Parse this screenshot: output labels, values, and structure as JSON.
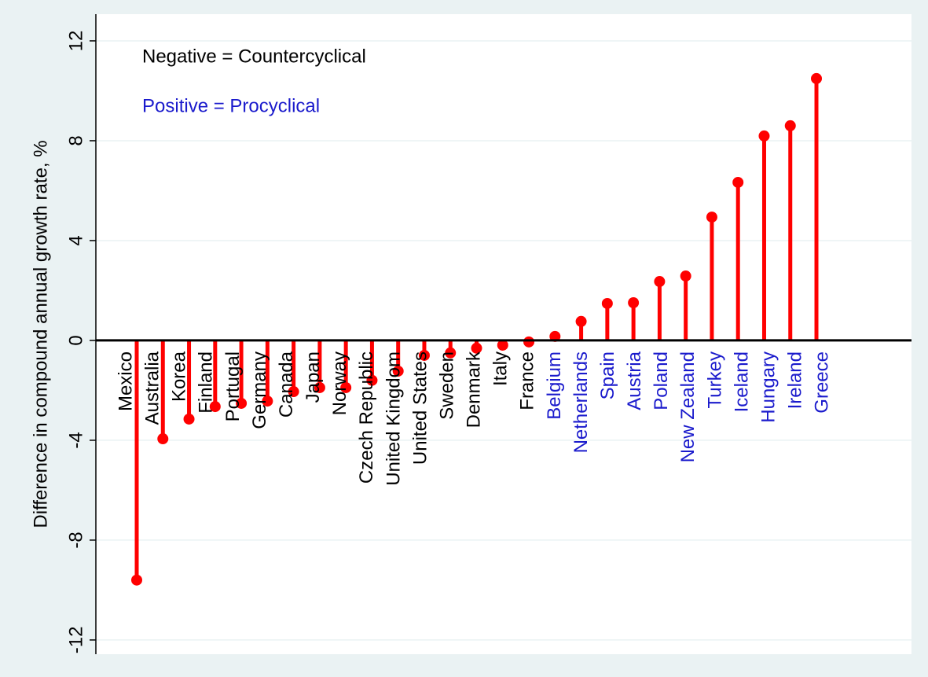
{
  "chart_data": {
    "type": "lollipop",
    "ylabel": "Difference in compound annual growth rate, %",
    "annotations": [
      {
        "text": "Negative = Countercyclical",
        "color": "#000000"
      },
      {
        "text": "Positive = Procyclical",
        "color": "#1a1acc"
      }
    ],
    "categories": [
      "Mexico",
      "Australia",
      "Korea",
      "Finland",
      "Portugal",
      "Germany",
      "Canada",
      "Japan",
      "Norway",
      "Czech Republic",
      "United Kingdom",
      "United States",
      "Sweden",
      "Denmark",
      "Italy",
      "France",
      "Belgium",
      "Netherlands",
      "Spain",
      "Austria",
      "Poland",
      "New Zealand",
      "Turkey",
      "Iceland",
      "Hungary",
      "Ireland",
      "Greece"
    ],
    "category_colors": [
      "#000000",
      "#000000",
      "#000000",
      "#000000",
      "#000000",
      "#000000",
      "#000000",
      "#000000",
      "#000000",
      "#000000",
      "#000000",
      "#000000",
      "#000000",
      "#000000",
      "#000000",
      "#000000",
      "#1a1acc",
      "#1a1acc",
      "#1a1acc",
      "#1a1acc",
      "#1a1acc",
      "#1a1acc",
      "#1a1acc",
      "#1a1acc",
      "#1a1acc",
      "#1a1acc",
      "#1a1acc"
    ],
    "values": [
      -9.6,
      -3.94,
      -3.15,
      -2.65,
      -2.52,
      -2.43,
      -2.05,
      -1.89,
      -1.89,
      -1.6,
      -1.23,
      -0.6,
      -0.5,
      -0.31,
      -0.19,
      -0.06,
      0.16,
      0.76,
      1.48,
      1.51,
      2.36,
      2.58,
      4.94,
      6.33,
      8.19,
      8.6,
      10.49
    ],
    "color": "#ff0000",
    "ylim": [
      -12.57,
      13.07
    ],
    "yticks": [
      -12,
      -8,
      -4,
      0,
      4,
      8,
      12
    ],
    "grid": true
  }
}
